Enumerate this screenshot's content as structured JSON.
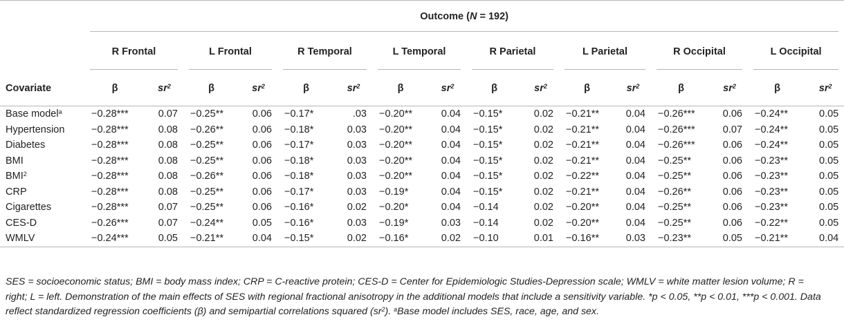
{
  "table": {
    "outcome_label": "Outcome (",
    "outcome_n": "N",
    "outcome_count": " = 192)",
    "covariate_header": "Covariate",
    "beta_symbol": "β",
    "sr_symbol": "sr",
    "sr_exp": "2",
    "regions": [
      "R Frontal",
      "L Frontal",
      "R Temporal",
      "L Temporal",
      "R Parietal",
      "L Parietal",
      "R Occipital",
      "L Occipital"
    ],
    "rows": [
      {
        "covariate": "Base model",
        "sup": "a",
        "values": [
          "−0.28***",
          "0.07",
          "−0.25**",
          "0.06",
          "−0.17*",
          ".03",
          "−0.20**",
          "0.04",
          "−0.15*",
          "0.02",
          "−0.21**",
          "0.04",
          "−0.26***",
          "0.06",
          "−0.24**",
          "0.05"
        ]
      },
      {
        "covariate": "Hypertension",
        "sup": "",
        "values": [
          "−0.28***",
          "0.08",
          "−0.26**",
          "0.06",
          "−0.18*",
          "0.03",
          "−0.20**",
          "0.04",
          "−0.15*",
          "0.02",
          "−0.21**",
          "0.04",
          "−0.26***",
          "0.07",
          "−0.24**",
          "0.05"
        ]
      },
      {
        "covariate": "Diabetes",
        "sup": "",
        "values": [
          "−0.28***",
          "0.08",
          "−0.25**",
          "0.06",
          "−0.17*",
          "0.03",
          "−0.20**",
          "0.04",
          "−0.15*",
          "0.02",
          "−0.21**",
          "0.04",
          "−0.26***",
          "0.06",
          "−0.24**",
          "0.05"
        ]
      },
      {
        "covariate": "BMI",
        "sup": "",
        "values": [
          "−0.28***",
          "0.08",
          "−0.25**",
          "0.06",
          "−0.18*",
          "0.03",
          "−0.20**",
          "0.04",
          "−0.15*",
          "0.02",
          "−0.21**",
          "0.04",
          "−0.25**",
          "0.06",
          "−0.23**",
          "0.05"
        ]
      },
      {
        "covariate": "BMI",
        "sup": "2",
        "values": [
          "−0.28***",
          "0.08",
          "−0.26**",
          "0.06",
          "−0.18*",
          "0.03",
          "−0.20**",
          "0.04",
          "−0.15*",
          "0.02",
          "−0.22**",
          "0.04",
          "−0.25**",
          "0.06",
          "−0.23**",
          "0.05"
        ]
      },
      {
        "covariate": "CRP",
        "sup": "",
        "values": [
          "−0.28***",
          "0.08",
          "−0.25**",
          "0.06",
          "−0.17*",
          "0.03",
          "−0.19*",
          "0.04",
          "−0.15*",
          "0.02",
          "−0.21**",
          "0.04",
          "−0.26**",
          "0.06",
          "−0.23**",
          "0.05"
        ]
      },
      {
        "covariate": "Cigarettes",
        "sup": "",
        "values": [
          "−0.28***",
          "0.07",
          "−0.25**",
          "0.06",
          "−0.16*",
          "0.02",
          "−0.20*",
          "0.04",
          "−0.14",
          "0.02",
          "−0.20**",
          "0.04",
          "−0.25**",
          "0.06",
          "−0.23**",
          "0.05"
        ]
      },
      {
        "covariate": "CES-D",
        "sup": "",
        "values": [
          "−0.26***",
          "0.07",
          "−0.24**",
          "0.05",
          "−0.16*",
          "0.03",
          "−0.19*",
          "0.03",
          "−0.14",
          "0.02",
          "−0.20**",
          "0.04",
          "−0.25**",
          "0.06",
          "−0.22**",
          "0.05"
        ]
      },
      {
        "covariate": "WMLV",
        "sup": "",
        "values": [
          "−0.24***",
          "0.05",
          "−0.21**",
          "0.04",
          "−0.15*",
          "0.02",
          "−0.16*",
          "0.02",
          "−0.10",
          "0.01",
          "−0.16**",
          "0.03",
          "−0.23**",
          "0.05",
          "−0.21**",
          "0.04"
        ]
      }
    ]
  },
  "footnote": {
    "part1": "SES = socioeconomic status; BMI = body mass index; CRP = C-reactive protein; CES-D = Center for Epidemiologic Studies-Depression scale; WMLV = white matter lesion volume; R = right; L = left. Demonstration of the main effects of SES with regional fractional anisotropy in the additional models that include a sensitivity variable. *p < 0.05, **p < 0.01, ***p < 0.001. Data reflect standardized regression coefficients (β) and semipartial correlations squared (sr",
    "sr_exp": "2",
    "part2": "). ",
    "sup_a": "a",
    "part3": "Base model includes SES, race, age, and sex."
  }
}
